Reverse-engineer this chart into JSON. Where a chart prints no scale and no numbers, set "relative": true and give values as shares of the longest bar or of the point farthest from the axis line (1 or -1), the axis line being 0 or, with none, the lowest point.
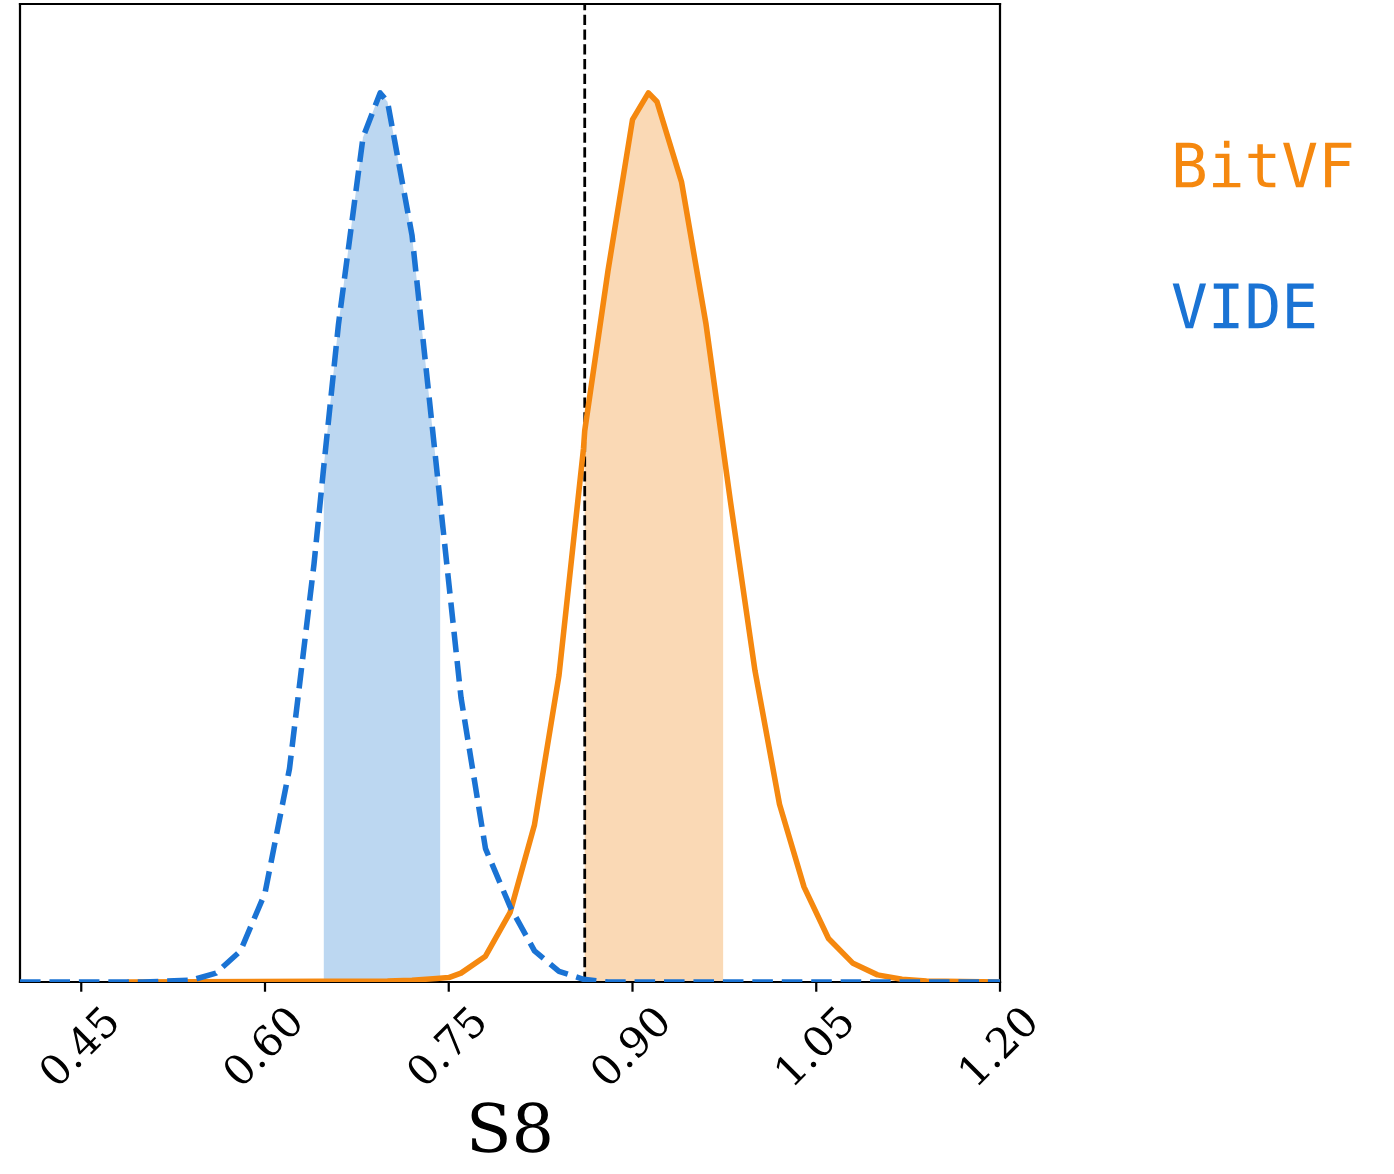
{
  "chart_data": {
    "type": "line",
    "xlabel": "S8",
    "relative": true,
    "xlim": [
      0.4,
      1.2
    ],
    "xticks": [
      {
        "value": 0.45,
        "label": "0.45"
      },
      {
        "value": 0.6,
        "label": "0.60"
      },
      {
        "value": 0.75,
        "label": "0.75"
      },
      {
        "value": 0.9,
        "label": "0.90"
      },
      {
        "value": 1.05,
        "label": "1.05"
      },
      {
        "value": 1.2,
        "label": "1.20"
      }
    ],
    "tick_labels": "x",
    "legend": "right",
    "grid": false,
    "ref_lines": [
      {
        "axis": "x",
        "value": 0.861,
        "label": null,
        "color": "#000000",
        "line_style": "dashed"
      }
    ],
    "series": [
      {
        "type": "area",
        "color": "#fad9b5",
        "x": [
          0.861,
          0.88,
          0.9,
          0.913,
          0.92,
          0.94,
          0.96,
          0.974
        ],
        "values": [
          0.62,
          0.8,
          0.97,
          1.0,
          0.99,
          0.9,
          0.74,
          0.6
        ]
      },
      {
        "type": "area",
        "color": "#bcd7f1",
        "x": [
          0.648,
          0.66,
          0.68,
          0.694,
          0.7,
          0.72,
          0.743
        ],
        "values": [
          0.58,
          0.74,
          0.95,
          1.0,
          0.99,
          0.84,
          0.54
        ]
      },
      {
        "name": "BitVF",
        "color": "#f5880f",
        "line_style": "solid",
        "x": [
          0.49,
          0.7,
          0.72,
          0.74,
          0.75,
          0.76,
          0.78,
          0.8,
          0.82,
          0.84,
          0.86,
          0.861,
          0.88,
          0.9,
          0.913,
          0.92,
          0.94,
          0.96,
          0.974,
          0.98,
          1.0,
          1.02,
          1.04,
          1.06,
          1.08,
          1.1,
          1.12,
          1.14,
          1.2
        ],
        "values": [
          0,
          0.001,
          0.002,
          0.004,
          0.005,
          0.01,
          0.029,
          0.078,
          0.177,
          0.345,
          0.6,
          0.62,
          0.8,
          0.97,
          1.0,
          0.99,
          0.9,
          0.74,
          0.6,
          0.54,
          0.35,
          0.2,
          0.107,
          0.049,
          0.021,
          0.008,
          0.003,
          0.001,
          0
        ]
      },
      {
        "name": "VIDE",
        "color": "#1a73d4",
        "line_style": "dashed",
        "x": [
          0.4,
          0.5,
          0.54,
          0.56,
          0.58,
          0.6,
          0.62,
          0.64,
          0.648,
          0.66,
          0.68,
          0.694,
          0.7,
          0.72,
          0.743,
          0.76,
          0.78,
          0.8,
          0.82,
          0.84,
          0.86,
          0.88,
          1.2
        ],
        "values": [
          0,
          0,
          0.002,
          0.01,
          0.035,
          0.1,
          0.24,
          0.47,
          0.58,
          0.74,
          0.95,
          1.0,
          0.99,
          0.84,
          0.54,
          0.32,
          0.15,
          0.085,
          0.035,
          0.012,
          0.003,
          0,
          0
        ]
      }
    ]
  }
}
